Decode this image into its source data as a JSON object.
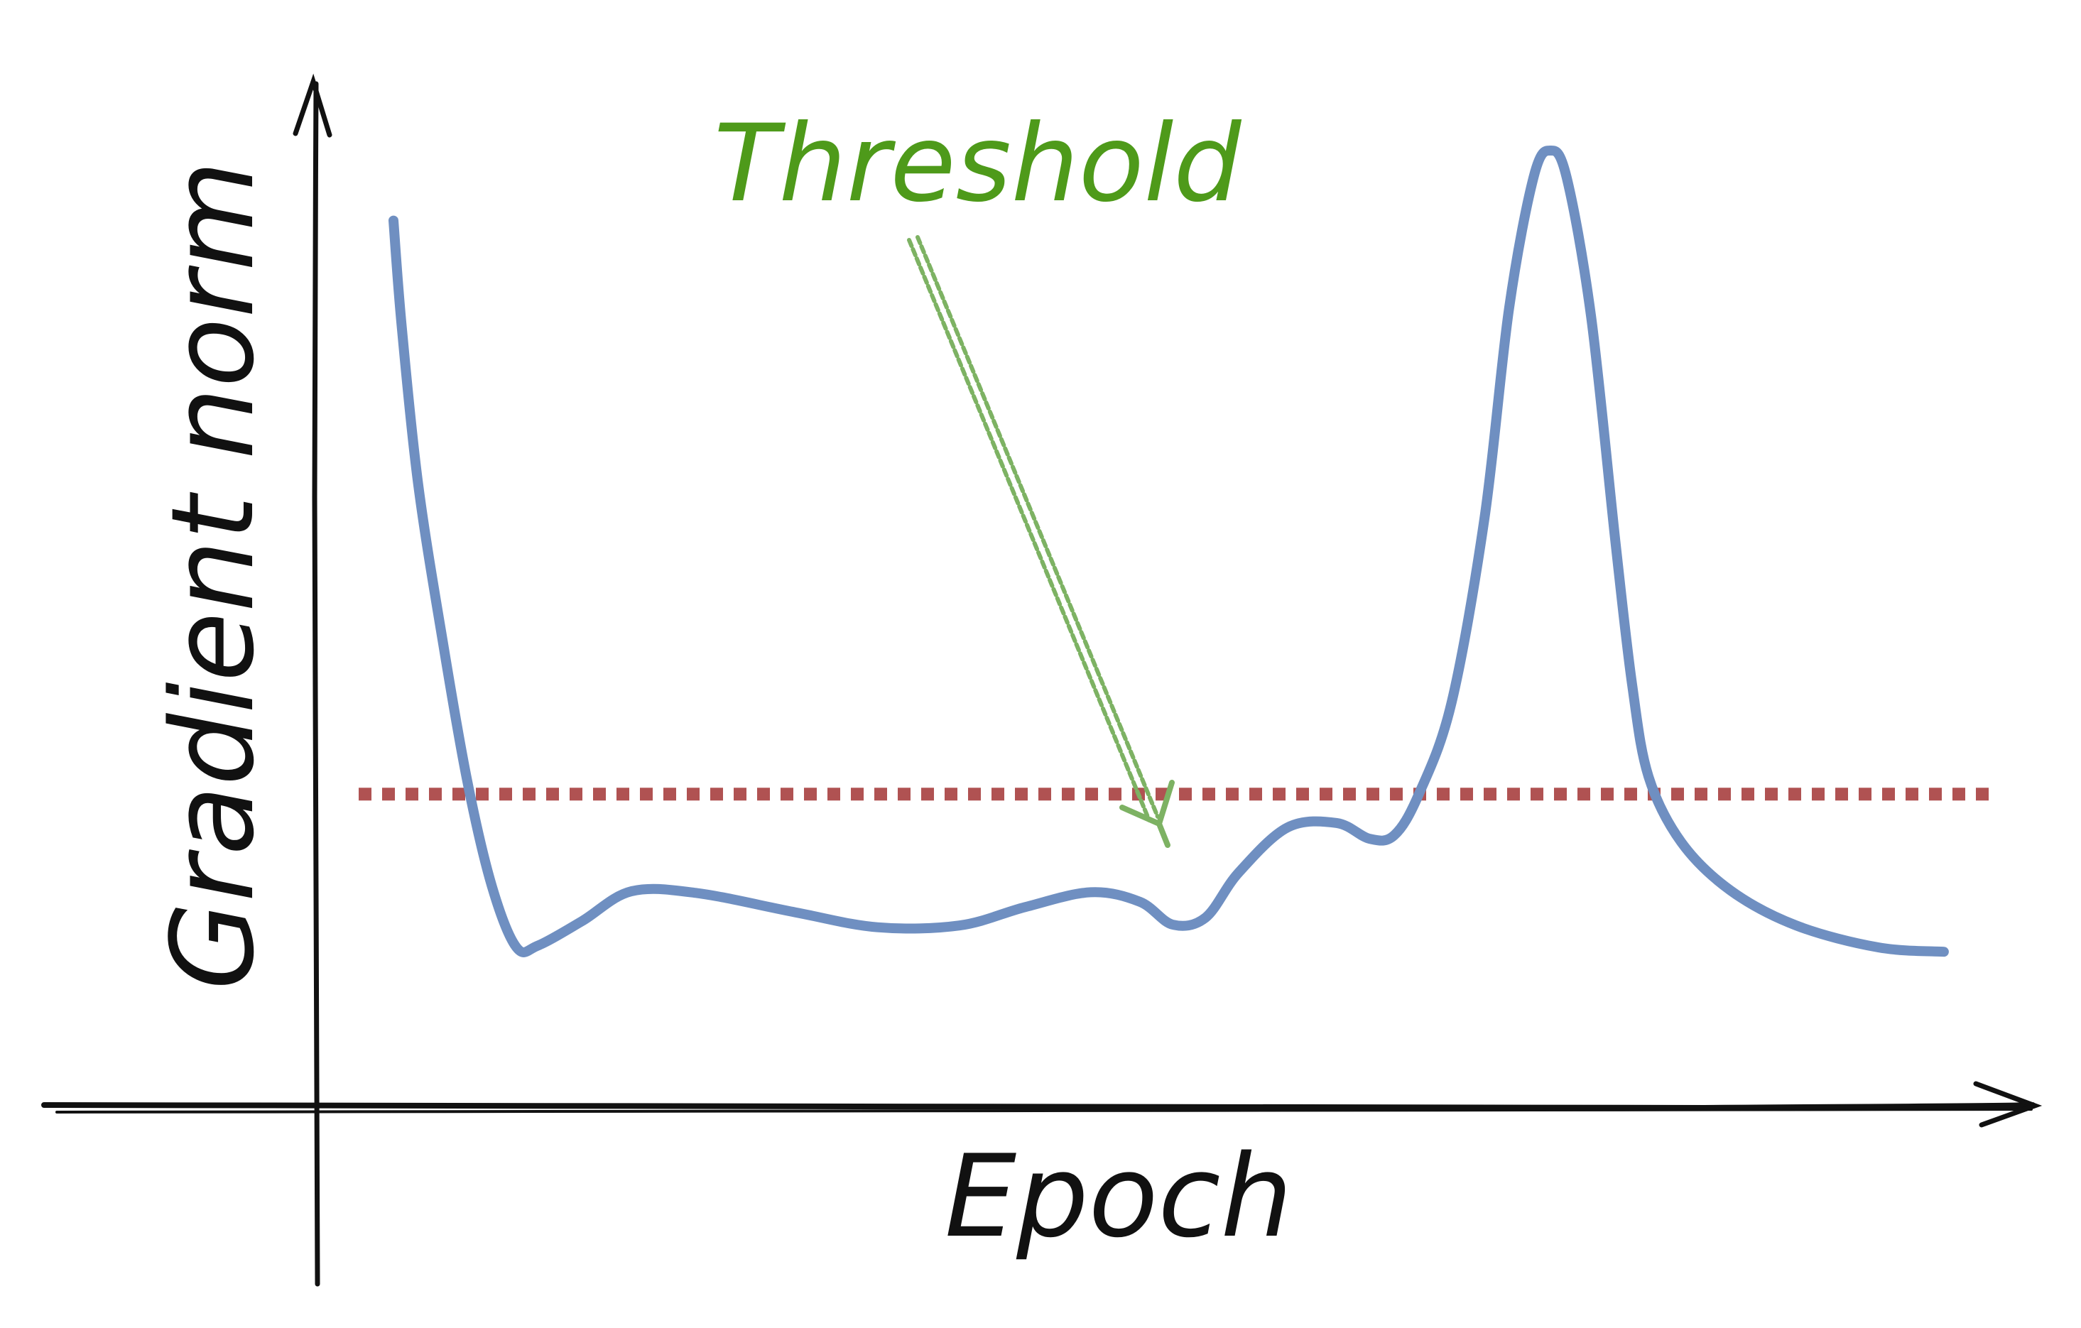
{
  "chart_data": {
    "type": "line",
    "title": "",
    "xlabel": "Epoch",
    "ylabel": "Gradient norm",
    "xlim": [
      0,
      100
    ],
    "ylim": [
      0,
      100
    ],
    "grid": false,
    "series": [
      {
        "values": [
          {
            "x": 4.5,
            "y": 92
          },
          {
            "x": 5,
            "y": 80
          },
          {
            "x": 6,
            "y": 62
          },
          {
            "x": 7.5,
            "y": 44
          },
          {
            "x": 9,
            "y": 28
          },
          {
            "x": 10.5,
            "y": 16
          },
          {
            "x": 12,
            "y": 9
          },
          {
            "x": 13.3,
            "y": 9.2
          },
          {
            "x": 16,
            "y": 12
          },
          {
            "x": 19,
            "y": 15.4
          },
          {
            "x": 23,
            "y": 15.2
          },
          {
            "x": 29,
            "y": 13
          },
          {
            "x": 34,
            "y": 11.3
          },
          {
            "x": 39,
            "y": 11.5
          },
          {
            "x": 43,
            "y": 13.6
          },
          {
            "x": 47,
            "y": 15.3
          },
          {
            "x": 50,
            "y": 14.2
          },
          {
            "x": 52,
            "y": 11.6
          },
          {
            "x": 54,
            "y": 12.4
          },
          {
            "x": 56,
            "y": 17.5
          },
          {
            "x": 59,
            "y": 22.7
          },
          {
            "x": 62,
            "y": 23.2
          },
          {
            "x": 64,
            "y": 21.4
          },
          {
            "x": 65.5,
            "y": 21.8
          },
          {
            "x": 67,
            "y": 26.5
          },
          {
            "x": 69,
            "y": 37
          },
          {
            "x": 71,
            "y": 58
          },
          {
            "x": 72.5,
            "y": 82
          },
          {
            "x": 74,
            "y": 97
          },
          {
            "x": 75,
            "y": 100
          },
          {
            "x": 76,
            "y": 97
          },
          {
            "x": 77.5,
            "y": 81
          },
          {
            "x": 79,
            "y": 55
          },
          {
            "x": 80,
            "y": 39
          },
          {
            "x": 81,
            "y": 28.5
          },
          {
            "x": 83,
            "y": 21
          },
          {
            "x": 86,
            "y": 15.5
          },
          {
            "x": 90,
            "y": 11.5
          },
          {
            "x": 95,
            "y": 9
          },
          {
            "x": 99,
            "y": 8.5
          }
        ],
        "color": "#6f8fc1"
      }
    ],
    "annotations": [
      {
        "text": "Threshold",
        "y": 26.5,
        "color": "#4e9a1a",
        "line_color": "#b05252",
        "arrow_color": "#7db263"
      }
    ]
  }
}
